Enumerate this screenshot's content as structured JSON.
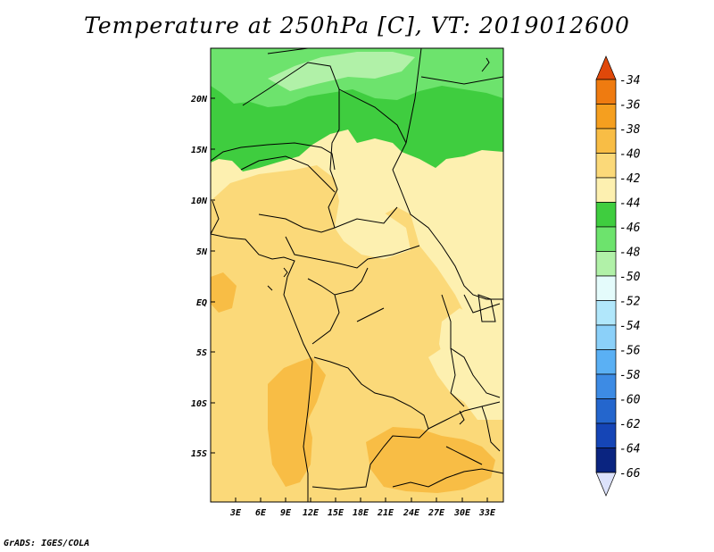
{
  "title": "Temperature at 250hPa [C], VT: 2019012600",
  "credit": "GrADS: IGES/COLA",
  "axes": {
    "lat_labels": [
      "20N",
      "15N",
      "10N",
      "5N",
      "EQ",
      "5S",
      "10S",
      "15S"
    ],
    "lon_labels": [
      "3E",
      "6E",
      "9E",
      "12E",
      "15E",
      "18E",
      "21E",
      "24E",
      "27E",
      "30E",
      "33E"
    ]
  },
  "colorbar": {
    "labels": [
      "-34",
      "-36",
      "-38",
      "-40",
      "-42",
      "-44",
      "-46",
      "-48",
      "-50",
      "-52",
      "-54",
      "-56",
      "-58",
      "-60",
      "-62",
      "-64",
      "-66"
    ],
    "colors": [
      "#e0480a",
      "#ef7b10",
      "#f59f1f",
      "#f8bd45",
      "#fbd979",
      "#fdf0b0",
      "#3fcd3f",
      "#6de36d",
      "#b1f1a8",
      "#e4fbfb",
      "#b1e7fb",
      "#8bd0f9",
      "#5ab0f4",
      "#3d8be4",
      "#2466cd",
      "#1545b6",
      "#0a2480"
    ],
    "top_arrow_color": "#e0480a",
    "bottom_arrow_color": "#dce2fb"
  }
}
